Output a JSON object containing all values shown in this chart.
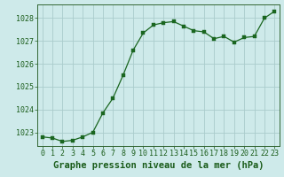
{
  "x": [
    0,
    1,
    2,
    3,
    4,
    5,
    6,
    7,
    8,
    9,
    10,
    11,
    12,
    13,
    14,
    15,
    16,
    17,
    18,
    19,
    20,
    21,
    22,
    23
  ],
  "y": [
    1022.8,
    1022.75,
    1022.6,
    1022.65,
    1022.8,
    1023.0,
    1023.85,
    1024.5,
    1025.5,
    1026.6,
    1027.35,
    1027.7,
    1027.8,
    1027.85,
    1027.65,
    1027.45,
    1027.4,
    1027.1,
    1027.2,
    1026.95,
    1027.15,
    1027.2,
    1028.0,
    1028.3
  ],
  "line_color": "#1a6620",
  "marker_color": "#1a6620",
  "bg_color": "#ceeaea",
  "grid_color": "#aacccc",
  "axis_color": "#336633",
  "xlabel": "Graphe pression niveau de la mer (hPa)",
  "xlabel_color": "#1a5c1a",
  "ylim": [
    1022.4,
    1028.6
  ],
  "yticks": [
    1023,
    1024,
    1025,
    1026,
    1027,
    1028
  ],
  "xticks": [
    0,
    1,
    2,
    3,
    4,
    5,
    6,
    7,
    8,
    9,
    10,
    11,
    12,
    13,
    14,
    15,
    16,
    17,
    18,
    19,
    20,
    21,
    22,
    23
  ],
  "tick_color": "#1a5c1a",
  "xlabel_fontsize": 7.5,
  "tick_fontsize": 6.0
}
